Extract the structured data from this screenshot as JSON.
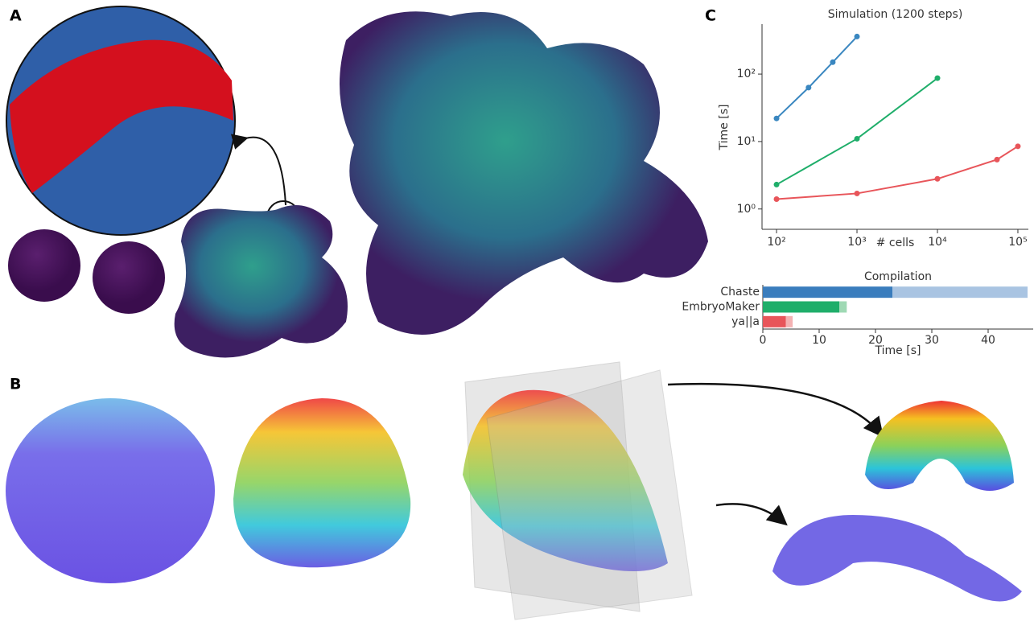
{
  "panels": [
    "A",
    "B",
    "C"
  ],
  "chart_data": [
    {
      "type": "line",
      "title": "Simulation (1200 steps)",
      "xlabel": "# cells",
      "ylabel": "Time [s]",
      "xscale": "log",
      "yscale": "log",
      "xlim": [
        66,
        135000
      ],
      "ylim": [
        0.5,
        550
      ],
      "xticks": [
        {
          "value": 100,
          "label": "10²"
        },
        {
          "value": 1000,
          "label": "10³"
        },
        {
          "value": 10000,
          "label": "10⁴"
        },
        {
          "value": 100000,
          "label": "10⁵"
        }
      ],
      "yticks": [
        {
          "value": 1,
          "label": "10⁰"
        },
        {
          "value": 10,
          "label": "10¹"
        },
        {
          "value": 100,
          "label": "10²"
        }
      ],
      "series": [
        {
          "color": "#3a87c0",
          "x": [
            100,
            250,
            500,
            1000
          ],
          "values": [
            22,
            63,
            150,
            360
          ]
        },
        {
          "color": "#1fae6a",
          "x": [
            100,
            1000,
            10000
          ],
          "values": [
            2.3,
            11,
            87
          ]
        },
        {
          "color": "#e8555a",
          "x": [
            100,
            1000,
            10000,
            55000,
            100000
          ],
          "values": [
            1.4,
            1.7,
            2.8,
            5.4,
            8.5
          ]
        }
      ]
    },
    {
      "type": "hbar_stacked",
      "title": "Compilation",
      "xlabel": "Time [s]",
      "categories": [
        "Chaste",
        "EmbryoMaker",
        "ya||a"
      ],
      "xlim": [
        0,
        48
      ],
      "xticks": [
        0,
        10,
        20,
        30,
        40
      ],
      "series": [
        {
          "colors": [
            "#3a7dbd",
            "#1fae6a",
            "#e8555a"
          ],
          "values": [
            23,
            13.6,
            4.1
          ]
        },
        {
          "colors": [
            "#a9c4e2",
            "#9fd9b4",
            "#f4b2b3"
          ],
          "values": [
            24,
            1.3,
            1.2
          ]
        }
      ]
    }
  ]
}
